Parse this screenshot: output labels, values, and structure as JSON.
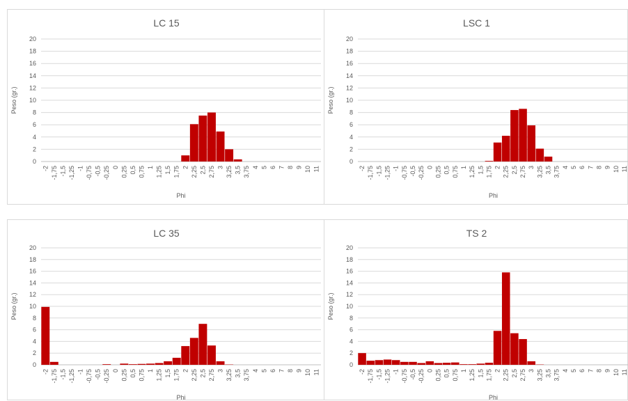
{
  "chart_data": [
    {
      "type": "bar",
      "title": "LC 15",
      "xlabel": "Phi",
      "ylabel": "Peso (gr.)",
      "ylim": [
        0,
        20
      ],
      "yticks": [
        "0",
        "2",
        "4",
        "6",
        "8",
        "10",
        "12",
        "14",
        "16",
        "18",
        "20"
      ],
      "grid": true,
      "bar_color": "#c00000",
      "categories": [
        "-2",
        "-1,75",
        "-1,5",
        "-1,25",
        "-1",
        "-0,75",
        "-0,5",
        "-0,25",
        "0",
        "0,25",
        "0,5",
        "0,75",
        "1",
        "1,25",
        "1,5",
        "1,75",
        "2",
        "2,25",
        "2,5",
        "2,75",
        "3",
        "3,25",
        "3,5",
        "3,75",
        "4",
        "5",
        "6",
        "7",
        "8",
        "9",
        "10",
        "11"
      ],
      "values": [
        0,
        0,
        0,
        0,
        0,
        0,
        0,
        0,
        0,
        0,
        0,
        0,
        0,
        0,
        0,
        0,
        1.0,
        6.1,
        7.5,
        8.0,
        4.9,
        2.0,
        0.35,
        0,
        0,
        0,
        0,
        0,
        0,
        0,
        0,
        0
      ]
    },
    {
      "type": "bar",
      "title": "LSC 1",
      "xlabel": "Phi",
      "ylabel": "Peso (gr.)",
      "ylim": [
        0,
        20
      ],
      "yticks": [
        "0",
        "2",
        "4",
        "6",
        "8",
        "10",
        "12",
        "14",
        "16",
        "18",
        "20"
      ],
      "grid": true,
      "bar_color": "#c00000",
      "categories": [
        "-2",
        "-1,75",
        "-1,5",
        "-1,25",
        "-1",
        "-0,75",
        "-0,5",
        "-0,25",
        "0",
        "0,25",
        "0,5",
        "0,75",
        "1",
        "1,25",
        "1,5",
        "1,75",
        "2",
        "2,25",
        "2,5",
        "2,75",
        "3",
        "3,25",
        "3,5",
        "3,75",
        "4",
        "5",
        "6",
        "7",
        "8",
        "9",
        "10",
        "11"
      ],
      "values": [
        0,
        0,
        0,
        0,
        0,
        0,
        0,
        0,
        0,
        0,
        0,
        0,
        0,
        0,
        0,
        0.1,
        3.1,
        4.2,
        8.4,
        8.6,
        5.9,
        2.1,
        0.8,
        0,
        0,
        0,
        0,
        0,
        0,
        0,
        0,
        0
      ]
    },
    {
      "type": "bar",
      "title": "LC 35",
      "xlabel": "Phi",
      "ylabel": "Peso (gr.)",
      "ylim": [
        0,
        20
      ],
      "yticks": [
        "0",
        "2",
        "4",
        "6",
        "8",
        "10",
        "12",
        "14",
        "16",
        "18",
        "20"
      ],
      "grid": true,
      "bar_color": "#c00000",
      "categories": [
        "-2",
        "-1,75",
        "-1,5",
        "-1,25",
        "-1",
        "-0,75",
        "-0,5",
        "-0,25",
        "0",
        "0,25",
        "0,5",
        "0,75",
        "1",
        "1,25",
        "1,5",
        "1,75",
        "2",
        "2,25",
        "2,5",
        "2,75",
        "3",
        "3,25",
        "3,5",
        "3,75",
        "4",
        "5",
        "6",
        "7",
        "8",
        "9",
        "10",
        "11"
      ],
      "values": [
        9.9,
        0.5,
        0,
        0,
        0,
        0,
        0,
        0.1,
        0,
        0.2,
        0.1,
        0.15,
        0.2,
        0.3,
        0.6,
        1.2,
        3.2,
        4.6,
        7.0,
        3.3,
        0.6,
        0.05,
        0,
        0,
        0,
        0,
        0,
        0,
        0,
        0,
        0,
        0
      ]
    },
    {
      "type": "bar",
      "title": "TS 2",
      "xlabel": "Phi",
      "ylabel": "Peso (gr.)",
      "ylim": [
        0,
        20
      ],
      "yticks": [
        "0",
        "2",
        "4",
        "6",
        "8",
        "10",
        "12",
        "14",
        "16",
        "18",
        "20"
      ],
      "grid": true,
      "bar_color": "#c00000",
      "categories": [
        "-2",
        "-1,75",
        "-1,5",
        "-1,25",
        "-1",
        "-0,75",
        "-0,5",
        "-0,25",
        "0",
        "0,25",
        "0,5",
        "0,75",
        "1",
        "1,25",
        "1,5",
        "1,75",
        "2",
        "2,25",
        "2,5",
        "2,75",
        "3",
        "3,25",
        "3,5",
        "3,75",
        "4",
        "5",
        "6",
        "7",
        "8",
        "9",
        "10",
        "11"
      ],
      "values": [
        2.0,
        0.7,
        0.8,
        0.9,
        0.8,
        0.5,
        0.5,
        0.3,
        0.6,
        0.3,
        0.35,
        0.4,
        0.1,
        0.1,
        0.2,
        0.35,
        5.8,
        15.8,
        5.4,
        4.4,
        0.6,
        0.05,
        0,
        0,
        0,
        0,
        0,
        0,
        0,
        0,
        0,
        0
      ]
    }
  ]
}
